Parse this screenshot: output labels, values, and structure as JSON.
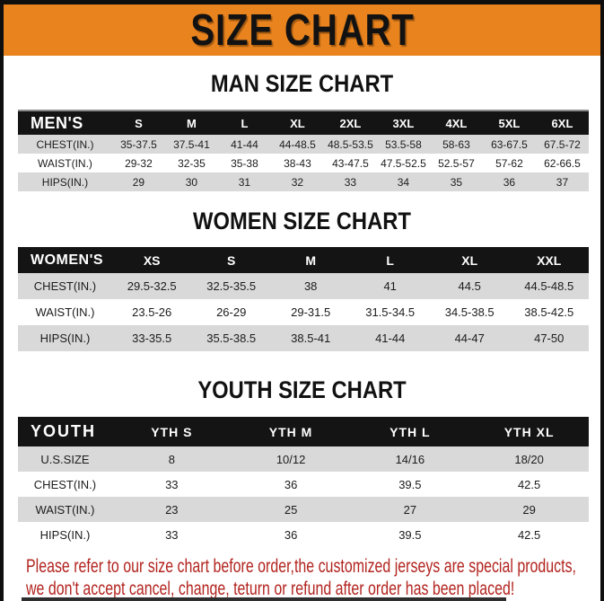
{
  "banner": {
    "title": "SIZE CHART"
  },
  "sections": {
    "men": {
      "heading": "MAN SIZE CHART",
      "header": [
        "MEN'S",
        "S",
        "M",
        "L",
        "XL",
        "2XL",
        "3XL",
        "4XL",
        "5XL",
        "6XL"
      ],
      "rows": [
        [
          "CHEST(IN.)",
          "35-37.5",
          "37.5-41",
          "41-44",
          "44-48.5",
          "48.5-53.5",
          "53.5-58",
          "58-63",
          "63-67.5",
          "67.5-72"
        ],
        [
          "WAIST(IN.)",
          "29-32",
          "32-35",
          "35-38",
          "38-43",
          "43-47.5",
          "47.5-52.5",
          "52.5-57",
          "57-62",
          "62-66.5"
        ],
        [
          "HIPS(IN.)",
          "29",
          "30",
          "31",
          "32",
          "33",
          "34",
          "35",
          "36",
          "37"
        ]
      ]
    },
    "women": {
      "heading": "WOMEN SIZE CHART",
      "header": [
        "WOMEN'S",
        "XS",
        "S",
        "M",
        "L",
        "XL",
        "XXL"
      ],
      "rows": [
        [
          "CHEST(IN.)",
          "29.5-32.5",
          "32.5-35.5",
          "38",
          "41",
          "44.5",
          "44.5-48.5"
        ],
        [
          "WAIST(IN.)",
          "23.5-26",
          "26-29",
          "29-31.5",
          "31.5-34.5",
          "34.5-38.5",
          "38.5-42.5"
        ],
        [
          "HIPS(IN.)",
          "33-35.5",
          "35.5-38.5",
          "38.5-41",
          "41-44",
          "44-47",
          "47-50"
        ]
      ]
    },
    "youth": {
      "heading": "YOUTH SIZE CHART",
      "header": [
        "YOUTH",
        "YTH S",
        "YTH M",
        "YTH L",
        "YTH XL"
      ],
      "rows": [
        [
          "U.S.SIZE",
          "8",
          "10/12",
          "14/16",
          "18/20"
        ],
        [
          "CHEST(IN.)",
          "33",
          "36",
          "39.5",
          "42.5"
        ],
        [
          "WAIST(IN.)",
          "23",
          "25",
          "27",
          "29"
        ],
        [
          "HIPS(IN.)",
          "33",
          "36",
          "39.5",
          "42.5"
        ]
      ]
    }
  },
  "notice": {
    "line1": "Please refer to our size chart before order,the customized jerseys are special products,",
    "line2": "we don't accept cancel, change, teturn or refund after order has been placed!"
  },
  "colors": {
    "banner_orange": "#E8831E",
    "table_header_black": "#141414",
    "row_shade_gray": "#D9D9D9",
    "notice_red": "#B2241F",
    "frame_black": "#0E0E0E"
  }
}
